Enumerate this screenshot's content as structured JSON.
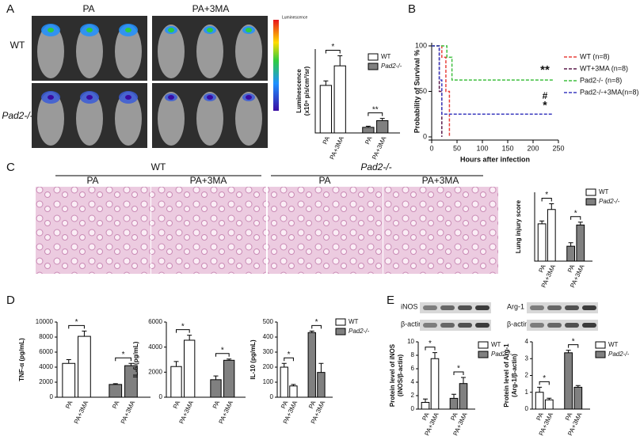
{
  "panels": {
    "a": "A",
    "b": "B",
    "c": "C",
    "d": "D",
    "e": "E"
  },
  "panel_a_images": {
    "columns": [
      "PA",
      "PA+3MA"
    ],
    "rows": [
      "WT",
      "Pad2-/-"
    ],
    "colorbar": "Luminescence"
  },
  "panel_c_images": {
    "groups": [
      "WT",
      "Pad2-/-"
    ],
    "columns": [
      "PA",
      "PA+3MA",
      "PA",
      "PA+3MA"
    ]
  },
  "panel_e_blots": {
    "left": [
      "iNOS",
      "β-actin"
    ],
    "right": [
      "Arg-1",
      "β-actin"
    ]
  },
  "chart_data": [
    {
      "type": "bar",
      "ylabel": [
        "Luminescence",
        "(x10⁶ p/s/cm²/sr)"
      ],
      "categories": [
        "PA",
        "PA+3MA"
      ],
      "series": [
        {
          "name": "WT",
          "color": "#ffffff",
          "values": [
            8.5,
            12
          ],
          "errors": [
            0.8,
            1.8
          ]
        },
        {
          "name": "Pad2-/-",
          "color": "#808080",
          "values": [
            1,
            2.2
          ],
          "errors": [
            0.2,
            0.4
          ]
        }
      ],
      "ylim": [
        0,
        15
      ],
      "significance": [
        "*",
        "**"
      ],
      "legend": true
    },
    {
      "type": "line",
      "step": true,
      "ylabel": "Probability of Survival %",
      "xlabel": "Hours after infection",
      "xlim": [
        0,
        250
      ],
      "xticks": [
        0,
        50,
        100,
        150,
        200,
        250
      ],
      "ylim": [
        0,
        100
      ],
      "yticks": [
        0,
        50,
        100
      ],
      "series": [
        {
          "name": "WT (n=8)",
          "color": "#e8413c",
          "x": [
            0,
            20,
            28,
            35
          ],
          "values": [
            100,
            87.5,
            50,
            0
          ]
        },
        {
          "name": "WT+3MA (n=8)",
          "color": "#5a1a4a",
          "x": [
            0,
            15,
            20
          ],
          "values": [
            100,
            50,
            0
          ]
        },
        {
          "name": "Pad2-/- (n=8)",
          "color": "#3fbf3f",
          "x": [
            0,
            30,
            40,
            240
          ],
          "values": [
            100,
            87.5,
            62.5,
            62.5
          ]
        },
        {
          "name": "Pad2-/-+3MA(n=8)",
          "color": "#3b3bbf",
          "x": [
            0,
            15,
            20,
            240
          ],
          "values": [
            100,
            62.5,
            25,
            25
          ]
        }
      ],
      "annotations": [
        "**",
        "#",
        "*"
      ],
      "legend": true
    },
    {
      "type": "bar",
      "ylabel": [
        "Lung injury score"
      ],
      "categories": [
        "PA",
        "PA+3MA"
      ],
      "series": [
        {
          "name": "WT",
          "color": "#ffffff",
          "values": [
            6.5,
            9
          ],
          "errors": [
            0.5,
            1
          ]
        },
        {
          "name": "Pad2-/-",
          "color": "#808080",
          "values": [
            2.6,
            6.3
          ],
          "errors": [
            0.6,
            0.5
          ]
        }
      ],
      "ylim": [
        0,
        12
      ],
      "significance": [
        "*",
        "*"
      ],
      "legend": true
    },
    {
      "type": "bar",
      "ylabel": [
        "TNF-α (pg/mL)"
      ],
      "categories": [
        "PA",
        "PA+3MA"
      ],
      "series": [
        {
          "name": "WT",
          "color": "#ffffff",
          "values": [
            4500,
            8100
          ],
          "errors": [
            500,
            700
          ]
        },
        {
          "name": "Pad2-/-",
          "color": "#808080",
          "values": [
            1700,
            4200
          ],
          "errors": [
            100,
            300
          ]
        }
      ],
      "ylim": [
        0,
        10000
      ],
      "yticks": [
        0,
        2000,
        4000,
        6000,
        8000,
        10000
      ],
      "significance": [
        "*",
        "*"
      ],
      "legend": false
    },
    {
      "type": "bar",
      "ylabel": [
        "IL-6 (pg/mL)"
      ],
      "categories": [
        "PA",
        "PA+3MA"
      ],
      "series": [
        {
          "name": "WT",
          "color": "#ffffff",
          "values": [
            2450,
            4550
          ],
          "errors": [
            400,
            400
          ]
        },
        {
          "name": "Pad2-/-",
          "color": "#808080",
          "values": [
            1400,
            2950
          ],
          "errors": [
            300,
            100
          ]
        }
      ],
      "ylim": [
        0,
        6000
      ],
      "yticks": [
        0,
        2000,
        4000,
        6000
      ],
      "significance": [
        "*",
        "*"
      ],
      "legend": false
    },
    {
      "type": "bar",
      "ylabel": [
        "IL-10 (pg/mL)"
      ],
      "categories": [
        "PA",
        "PA+3MA"
      ],
      "series": [
        {
          "name": "WT",
          "color": "#ffffff",
          "values": [
            200,
            75
          ],
          "errors": [
            25,
            10
          ]
        },
        {
          "name": "Pad2-/-",
          "color": "#808080",
          "values": [
            430,
            165
          ],
          "errors": [
            10,
            60
          ]
        }
      ],
      "ylim": [
        0,
        500
      ],
      "yticks": [
        0,
        100,
        200,
        300,
        400,
        500
      ],
      "significance": [
        "*",
        "*"
      ],
      "legend": true
    },
    {
      "type": "bar",
      "ylabel": [
        "Protein level of iNOS",
        "(iNOS/β-actin)"
      ],
      "categories": [
        "PA",
        "PA+3MA"
      ],
      "series": [
        {
          "name": "WT",
          "color": "#ffffff",
          "values": [
            1,
            7.5
          ],
          "errors": [
            0.5,
            0.9
          ]
        },
        {
          "name": "Pad2-/-",
          "color": "#808080",
          "values": [
            1.6,
            3.8
          ],
          "errors": [
            0.6,
            0.9
          ]
        }
      ],
      "ylim": [
        0,
        10
      ],
      "yticks": [
        0,
        2,
        4,
        6,
        8,
        10
      ],
      "significance": [
        "*",
        "*"
      ],
      "legend": true
    },
    {
      "type": "bar",
      "ylabel": [
        "Protein level of Arg-1",
        "(Arg-1/β-actin)"
      ],
      "categories": [
        "PA",
        "PA+3MA"
      ],
      "series": [
        {
          "name": "WT",
          "color": "#ffffff",
          "values": [
            1,
            0.55
          ],
          "errors": [
            0.3,
            0.1
          ]
        },
        {
          "name": "Pad2-/-",
          "color": "#808080",
          "values": [
            3.35,
            1.3
          ],
          "errors": [
            0.15,
            0.1
          ]
        }
      ],
      "ylim": [
        0,
        4
      ],
      "yticks": [
        0,
        1,
        2,
        3,
        4
      ],
      "significance": [
        "*",
        "*"
      ],
      "legend": true
    }
  ]
}
